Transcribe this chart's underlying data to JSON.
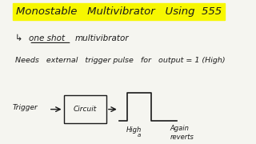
{
  "bg_color": "#f5f5f0",
  "title_text": "Monostable   Multivibrator   Using  555",
  "title_highlight_color": "#ffff00",
  "line1_arrow": "↳",
  "line1_oneshot": "one shot",
  "line1_multi": "multivibrator",
  "line2_text": "Needs   external   trigger pulse   for   output = 1 (High)",
  "trigger_label": "Trigger",
  "circuit_label": "Circuit",
  "high_label": "High",
  "high_sub": "a",
  "again_label": "Again\nreverts",
  "handwriting_color": "#1a1a1a",
  "highlight_color": "#f7f700"
}
